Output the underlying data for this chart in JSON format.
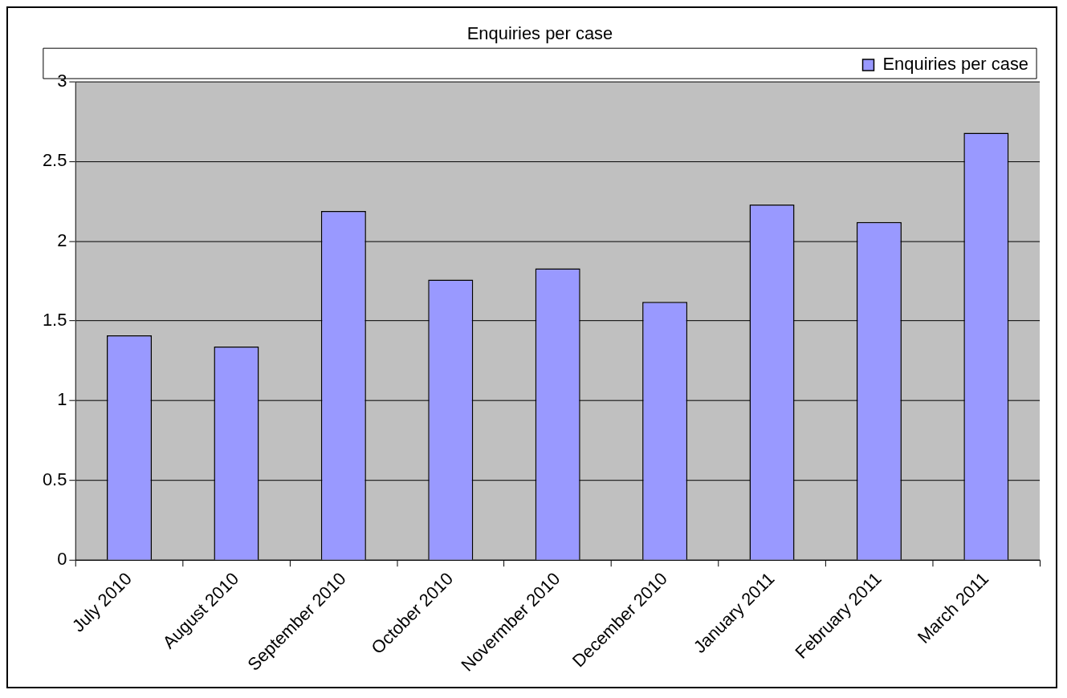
{
  "chart_data": {
    "type": "bar",
    "title": "Enquiries per case",
    "categories": [
      "July 2010",
      "August 2010",
      "September 2010",
      "October 2010",
      "Novermber 2010",
      "December 2010",
      "January 2011",
      "February 2011",
      "March 2011"
    ],
    "series": [
      {
        "name": "Enquiries per case",
        "color": "#9999ff",
        "values": [
          1.41,
          1.34,
          2.19,
          1.76,
          1.83,
          1.62,
          2.23,
          2.12,
          2.68
        ]
      }
    ],
    "ylim": [
      0,
      3
    ],
    "yticks": [
      0,
      0.5,
      1,
      1.5,
      2,
      2.5,
      3
    ],
    "grid": "y",
    "legend": "top right"
  }
}
